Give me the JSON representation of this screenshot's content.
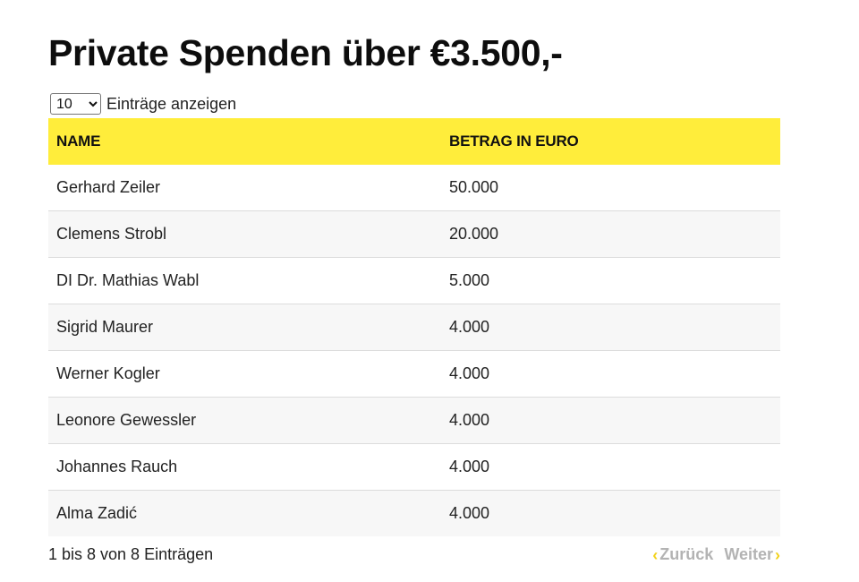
{
  "title": "Private Spenden über €3.500,-",
  "length": {
    "selected": "10",
    "label": "Einträge anzeigen"
  },
  "table": {
    "headers": {
      "name": "NAME",
      "amount": "BETRAG IN EURO"
    },
    "rows": [
      {
        "name": "Gerhard Zeiler",
        "amount": "50.000"
      },
      {
        "name": "Clemens Strobl",
        "amount": "20.000"
      },
      {
        "name": "DI Dr. Mathias Wabl",
        "amount": "5.000"
      },
      {
        "name": "Sigrid Maurer",
        "amount": "4.000"
      },
      {
        "name": "Werner Kogler",
        "amount": "4.000"
      },
      {
        "name": "Leonore Gewessler",
        "amount": "4.000"
      },
      {
        "name": "Johannes Rauch",
        "amount": "4.000"
      },
      {
        "name": "Alma Zadić",
        "amount": "4.000"
      }
    ]
  },
  "info": "1 bis 8 von 8 Einträgen",
  "pagination": {
    "prev_label": "Zurück",
    "next_label": "Weiter",
    "prev_icon": "chevron-left-icon",
    "next_icon": "chevron-right-icon"
  },
  "colors": {
    "header_bg": "#ffed3b",
    "accent": "#f2d21b",
    "disabled_text": "#b3b3b3",
    "stripe": "#f7f7f7"
  }
}
